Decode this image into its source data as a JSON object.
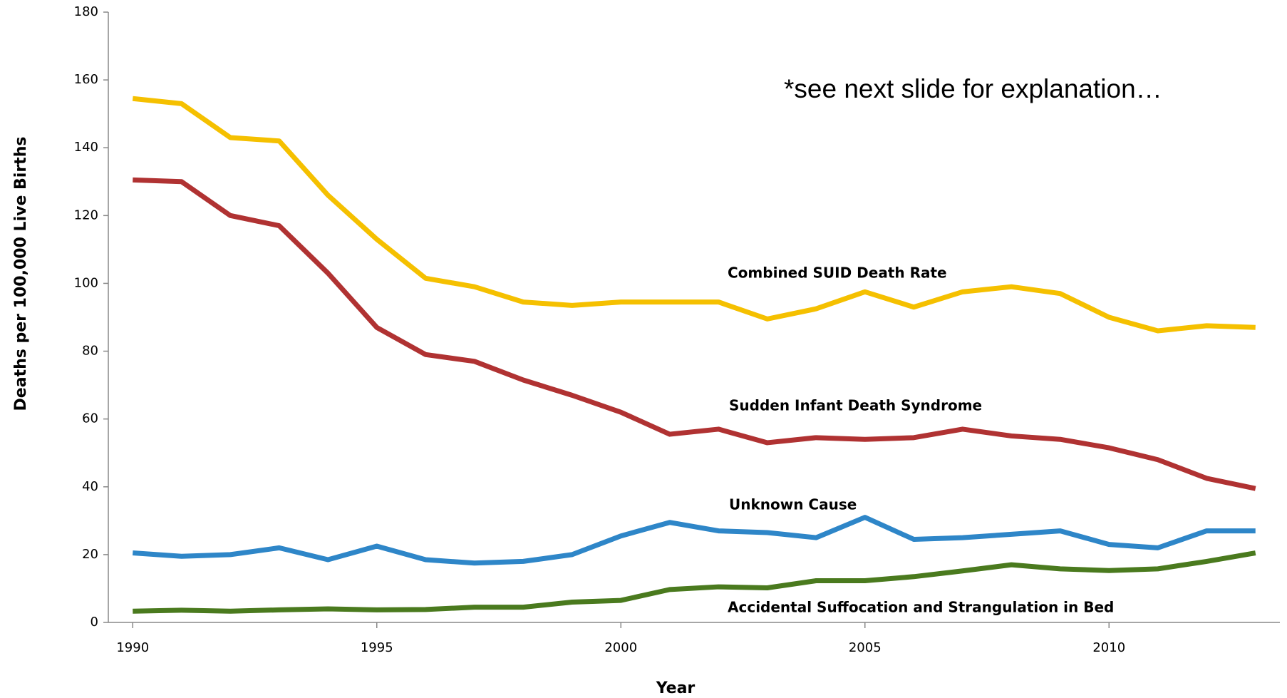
{
  "chart_data": {
    "type": "line",
    "annotation": "*see next slide for explanation…",
    "x_label": "Year",
    "y_label": "Deaths per 100,000 Live Births",
    "x": [
      1990,
      1991,
      1992,
      1993,
      1994,
      1995,
      1996,
      1997,
      1998,
      1999,
      2000,
      2001,
      2002,
      2003,
      2004,
      2005,
      2006,
      2007,
      2008,
      2009,
      2010,
      2011,
      2012,
      2013
    ],
    "series": [
      {
        "name": "Combined SUID Death Rate",
        "color": "#f5c000",
        "values": [
          154.5,
          153,
          143,
          142,
          126,
          113,
          101.5,
          99,
          94.5,
          93.5,
          94.5,
          94.5,
          94.5,
          89.5,
          92.5,
          97.5,
          93,
          97.5,
          99,
          97,
          90,
          86,
          87.5,
          87
        ]
      },
      {
        "name": "Sudden Infant Death Syndrome",
        "color": "#b03232",
        "values": [
          130.5,
          130,
          120,
          117,
          103,
          87,
          79,
          77,
          71.5,
          67,
          62,
          55.5,
          57,
          53,
          54.5,
          54,
          54.5,
          57,
          55,
          54,
          51.5,
          48,
          42.5,
          39.5
        ]
      },
      {
        "name": "Unknown Cause",
        "color": "#2e86c8",
        "values": [
          20.5,
          19.5,
          20,
          22,
          18.5,
          22.5,
          18.5,
          17.5,
          18,
          20,
          25.5,
          29.5,
          27,
          26.5,
          25,
          31,
          24.5,
          25,
          26,
          27,
          23,
          22,
          27,
          27
        ]
      },
      {
        "name": "Accidental Suffocation and Strangulation in Bed",
        "color": "#4a7a1e",
        "values": [
          3.3,
          3.6,
          3.3,
          3.7,
          4,
          3.7,
          3.8,
          4.5,
          4.5,
          6,
          6.5,
          9.7,
          10.5,
          10.2,
          12.3,
          12.3,
          13.5,
          15.2,
          17,
          15.8,
          15.3,
          15.8,
          18,
          20.5
        ]
      }
    ],
    "xlim": [
      1989.5,
      2013.5
    ],
    "xticks": [
      1990,
      1995,
      2000,
      2005,
      2010
    ],
    "ylim": [
      0,
      180
    ],
    "yticks": [
      0,
      20,
      40,
      60,
      80,
      100,
      120,
      140,
      160,
      180
    ],
    "grid": false
  }
}
